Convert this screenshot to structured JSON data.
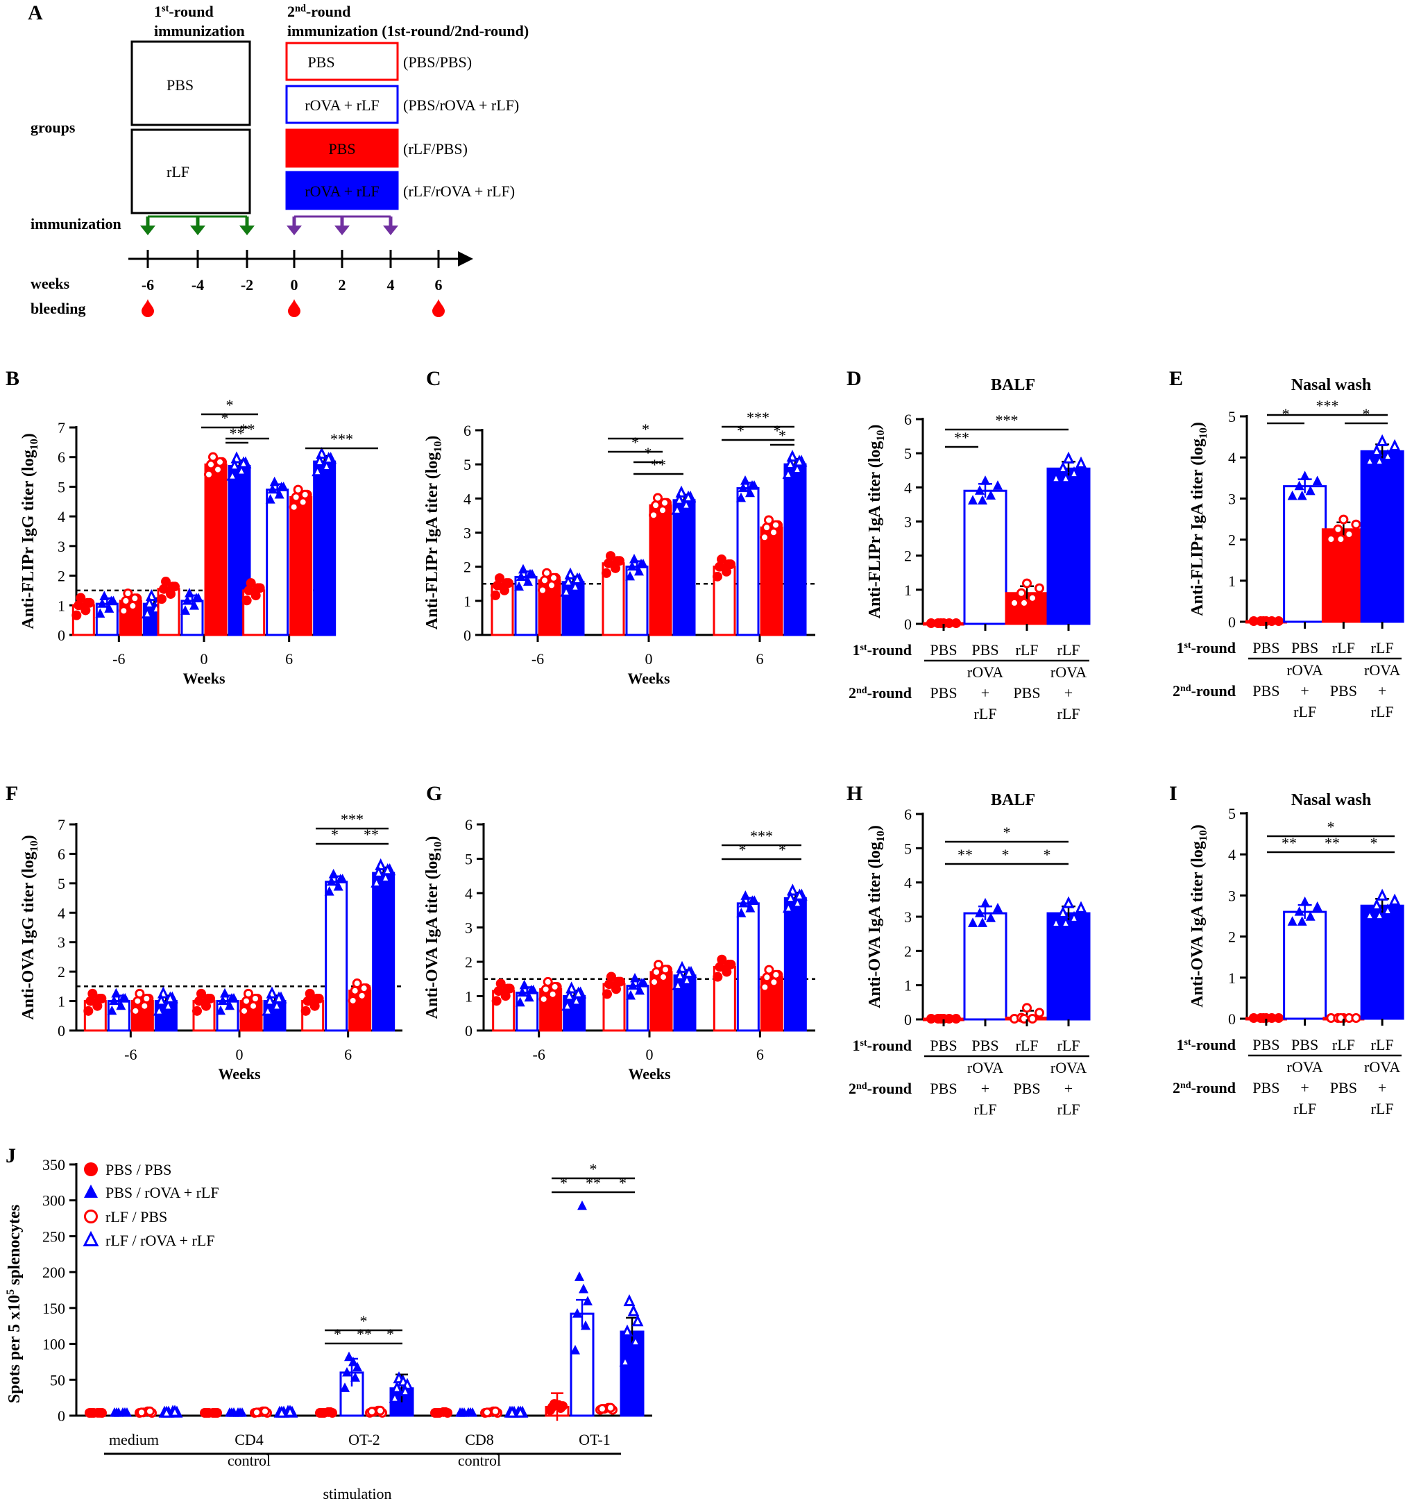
{
  "colors": {
    "red": "#ff0000",
    "blue": "#0000ff",
    "green": "#117a11",
    "purple": "#7030a0",
    "black": "#000000"
  },
  "panel_a": {
    "letter": "A",
    "first_round_title_1": "1st-round",
    "first_round_title_2": "immunization",
    "second_round_title_1": "2nd-round",
    "second_round_title_2": "immunization (1st-round/2nd-round)",
    "groups_label": "groups",
    "immunization_label": "immunization",
    "weeks_label": "weeks",
    "bleeding_label": "bleeding",
    "first_round_boxes": [
      "PBS",
      "rLF"
    ],
    "second_round_boxes": [
      {
        "text": "PBS",
        "style": "red-outline",
        "group": "(PBS/PBS)"
      },
      {
        "text": "rOVA + rLF",
        "style": "blue-outline",
        "group": "(PBS/rOVA + rLF)"
      },
      {
        "text": "PBS",
        "style": "red-fill",
        "group": "(rLF/PBS)"
      },
      {
        "text": "rOVA + rLF",
        "style": "blue-fill",
        "group": "(rLF/rOVA + rLF)"
      }
    ],
    "week_ticks": [
      "-6",
      "-4",
      "-2",
      "0",
      "2",
      "4",
      "6"
    ],
    "first_round_weeks": [
      "-6",
      "-4",
      "-2"
    ],
    "second_round_weeks": [
      "0",
      "2",
      "4"
    ],
    "bleeding_weeks": [
      "-6",
      "0",
      "6"
    ]
  },
  "chart_data": [
    {
      "id": "B",
      "type": "bar",
      "ylabel": "Anti-FLIPr IgG titer (log10)",
      "xlabel": "Weeks",
      "categories": [
        "-6",
        "0",
        "6"
      ],
      "ylim": [
        0,
        7
      ],
      "yticks": [
        0,
        1,
        2,
        3,
        4,
        5,
        6,
        7
      ],
      "dashed_line": 1.5,
      "series": [
        {
          "name": "PBS / PBS",
          "values": [
            1.0,
            1.55,
            1.5
          ]
        },
        {
          "name": "PBS / rOVA + rLF",
          "values": [
            1.05,
            1.15,
            4.9
          ]
        },
        {
          "name": "rLF / PBS",
          "values": [
            1.15,
            5.75,
            4.65
          ]
        },
        {
          "name": "rLF / rOVA + rLF",
          "values": [
            1.05,
            5.7,
            5.85
          ]
        }
      ],
      "significance": [
        "*",
        "*",
        "**",
        "**",
        "***"
      ]
    },
    {
      "id": "C",
      "type": "bar",
      "ylabel": "Anti-FLIPr IgA titer (log10)",
      "xlabel": "Weeks",
      "categories": [
        "-6",
        "0",
        "6"
      ],
      "ylim": [
        0,
        6
      ],
      "yticks": [
        0,
        1,
        2,
        3,
        4,
        5,
        6
      ],
      "dashed_line": 1.5,
      "series": [
        {
          "name": "PBS / PBS",
          "values": [
            1.45,
            2.1,
            2.0
          ]
        },
        {
          "name": "PBS / rOVA + rLF",
          "values": [
            1.7,
            2.0,
            4.3
          ]
        },
        {
          "name": "rLF / PBS",
          "values": [
            1.6,
            3.8,
            3.15
          ]
        },
        {
          "name": "rLF / rOVA + rLF",
          "values": [
            1.55,
            3.95,
            5.0
          ]
        }
      ],
      "significance": [
        "*",
        "*",
        "*",
        "**",
        "***",
        "*",
        "*",
        "*"
      ]
    },
    {
      "id": "D",
      "type": "bar",
      "title": "BALF",
      "ylabel": "Anti-FLIPr IgA titer (log10)",
      "ylim": [
        0,
        6
      ],
      "yticks": [
        0,
        1,
        2,
        3,
        4,
        5,
        6
      ],
      "groups": [
        {
          "first": "PBS",
          "second": "PBS"
        },
        {
          "first": "PBS",
          "second": "rOVA + rLF"
        },
        {
          "first": "rLF",
          "second": "PBS"
        },
        {
          "first": "rLF",
          "second": "rOVA + rLF"
        }
      ],
      "values": [
        0.0,
        3.9,
        0.9,
        4.55
      ],
      "significance": [
        "**",
        "***"
      ]
    },
    {
      "id": "E",
      "type": "bar",
      "title": "Nasal wash",
      "ylabel": "Anti-FLIPr IgA titer (log10)",
      "ylim": [
        0,
        5
      ],
      "yticks": [
        0,
        1,
        2,
        3,
        4,
        5
      ],
      "groups": [
        {
          "first": "PBS",
          "second": "PBS"
        },
        {
          "first": "PBS",
          "second": "rOVA + rLF"
        },
        {
          "first": "rLF",
          "second": "PBS"
        },
        {
          "first": "rLF",
          "second": "rOVA + rLF"
        }
      ],
      "values": [
        0.0,
        3.3,
        2.25,
        4.15
      ],
      "significance": [
        "*",
        "***",
        "*"
      ]
    },
    {
      "id": "F",
      "type": "bar",
      "ylabel": "Anti-OVA IgG titer (log10)",
      "xlabel": "Weeks",
      "categories": [
        "-6",
        "0",
        "6"
      ],
      "ylim": [
        0,
        7
      ],
      "yticks": [
        0,
        1,
        2,
        3,
        4,
        5,
        6,
        7
      ],
      "dashed_line": 1.5,
      "series": [
        {
          "name": "PBS / PBS",
          "values": [
            1.0,
            1.0,
            1.0
          ]
        },
        {
          "name": "PBS / rOVA + rLF",
          "values": [
            1.0,
            1.0,
            5.05
          ]
        },
        {
          "name": "rLF / PBS",
          "values": [
            1.0,
            1.0,
            1.35
          ]
        },
        {
          "name": "rLF / rOVA + rLF",
          "values": [
            1.0,
            1.0,
            5.35
          ]
        }
      ],
      "significance": [
        "*",
        "**",
        "***"
      ]
    },
    {
      "id": "G",
      "type": "bar",
      "ylabel": "Anti-OVA IgA titer (log10)",
      "xlabel": "Weeks",
      "categories": [
        "-6",
        "0",
        "6"
      ],
      "ylim": [
        0,
        6
      ],
      "yticks": [
        0,
        1,
        2,
        3,
        4,
        5,
        6
      ],
      "dashed_line": 1.5,
      "series": [
        {
          "name": "PBS / PBS",
          "values": [
            1.15,
            1.35,
            1.85
          ]
        },
        {
          "name": "PBS / rOVA + rLF",
          "values": [
            1.1,
            1.3,
            3.7
          ]
        },
        {
          "name": "rLF / PBS",
          "values": [
            1.2,
            1.7,
            1.55
          ]
        },
        {
          "name": "rLF / rOVA + rLF",
          "values": [
            1.0,
            1.6,
            3.85
          ]
        }
      ],
      "significance": [
        "*",
        "*",
        "***"
      ]
    },
    {
      "id": "H",
      "type": "bar",
      "title": "BALF",
      "ylabel": "Anti-OVA IgA titer (log10)",
      "ylim": [
        0,
        6
      ],
      "yticks": [
        0,
        1,
        2,
        3,
        4,
        5,
        6
      ],
      "groups": [
        {
          "first": "PBS",
          "second": "PBS"
        },
        {
          "first": "PBS",
          "second": "rOVA + rLF"
        },
        {
          "first": "rLF",
          "second": "PBS"
        },
        {
          "first": "rLF",
          "second": "rOVA + rLF"
        }
      ],
      "values": [
        0.0,
        3.1,
        0.05,
        3.1
      ],
      "significance": [
        "**",
        "*",
        "*",
        "*"
      ]
    },
    {
      "id": "I",
      "type": "bar",
      "title": "Nasal wash",
      "ylabel": "Anti-OVA IgA titer (log10)",
      "ylim": [
        0,
        5
      ],
      "yticks": [
        0,
        1,
        2,
        3,
        4,
        5
      ],
      "groups": [
        {
          "first": "PBS",
          "second": "PBS"
        },
        {
          "first": "PBS",
          "second": "rOVA + rLF"
        },
        {
          "first": "rLF",
          "second": "PBS"
        },
        {
          "first": "rLF",
          "second": "rOVA + rLF"
        }
      ],
      "values": [
        0.0,
        2.6,
        0.0,
        2.75
      ],
      "significance": [
        "**",
        "**",
        "*",
        "*"
      ]
    },
    {
      "id": "J",
      "type": "bar",
      "ylabel": "Spots per 5 x105 splenocytes",
      "xlabel": "stimulation",
      "categories": [
        "medium",
        "CD4 control",
        "OT-2",
        "CD8 control",
        "OT-1"
      ],
      "ylim": [
        0,
        350
      ],
      "yticks": [
        0,
        50,
        100,
        150,
        200,
        250,
        300,
        350
      ],
      "series": [
        {
          "name": "PBS / PBS",
          "values": [
            1,
            0,
            2,
            2,
            12
          ]
        },
        {
          "name": "PBS / rOVA + rLF",
          "values": [
            1,
            0,
            60,
            1,
            142
          ]
        },
        {
          "name": "rLF / PBS",
          "values": [
            3,
            3,
            4,
            3,
            8
          ]
        },
        {
          "name": "rLF / rOVA + rLF",
          "values": [
            2,
            2,
            38,
            1,
            117
          ]
        }
      ],
      "legend": [
        "PBS / PBS",
        "PBS / rOVA + rLF",
        "rLF / PBS",
        "rLF / rOVA + rLF"
      ],
      "significance": [
        "*",
        "**",
        "*",
        "*",
        "*",
        "**",
        "*",
        "*"
      ]
    }
  ],
  "labels": {
    "B": "B",
    "C": "C",
    "D": "D",
    "E": "E",
    "F": "F",
    "G": "G",
    "H": "H",
    "I": "I",
    "J": "J",
    "weeks": "Weeks",
    "first_round": "1st-round",
    "second_round": "2nd-round",
    "rova": "rOVA",
    "plus": "+",
    "rlf": "rLF",
    "pbs": "PBS",
    "log10": "10",
    "j_cat_1": "medium",
    "j_cat_2_a": "CD4",
    "j_cat_2_b": "control",
    "j_cat_3": "OT-2",
    "j_cat_4_a": "CD8",
    "j_cat_4_b": "control",
    "j_cat_5": "OT-1",
    "stimulation": "stimulation"
  }
}
